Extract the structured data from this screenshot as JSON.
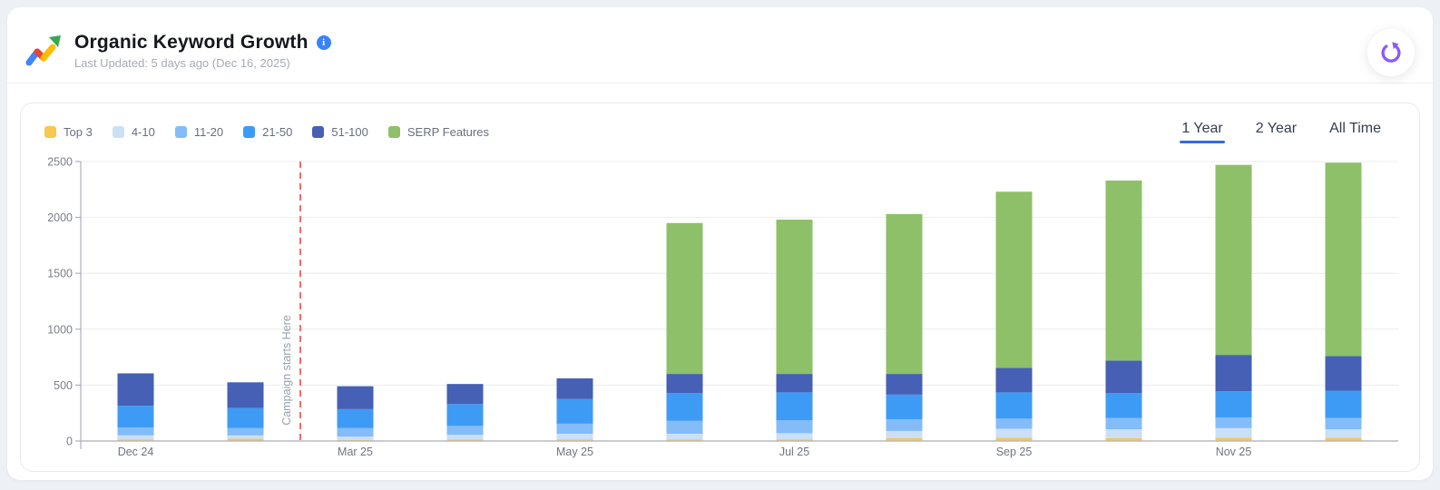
{
  "header": {
    "title": "Organic Keyword Growth",
    "subtitle": "Last Updated: 5 days ago (Dec 16, 2025)",
    "info_icon": "i"
  },
  "tabs": [
    {
      "label": "1 Year",
      "active": true
    },
    {
      "label": "2 Year",
      "active": false
    },
    {
      "label": "All Time",
      "active": false
    }
  ],
  "legend": [
    {
      "label": "Top 3",
      "color": "#f9c74f"
    },
    {
      "label": "4-10",
      "color": "#cbdff6"
    },
    {
      "label": "11-20",
      "color": "#83bcf8"
    },
    {
      "label": "21-50",
      "color": "#3e9bf5"
    },
    {
      "label": "51-100",
      "color": "#4560b4"
    },
    {
      "label": "SERP Features",
      "color": "#8ec069"
    }
  ],
  "colors": {
    "accent_blue": "#2f6be4",
    "refresh_purple": "#8b5cf6",
    "info_blue": "#3b82f6",
    "annotation_red": "#f56c6c",
    "grid": "#ececf0",
    "baseline": "#b8bcc2",
    "axis_line": "#9ea2a8",
    "axis_text": "#7a7f87"
  },
  "chart_data": {
    "type": "bar",
    "stacked": true,
    "categories": [
      "Dec 24",
      "",
      "Mar 25",
      "",
      "May 25",
      "",
      "Jul 25",
      "",
      "Sep 25",
      "",
      "Nov 25",
      ""
    ],
    "series": [
      {
        "name": "Top 3",
        "color": "#f9c74f",
        "values": [
          15,
          20,
          10,
          15,
          15,
          15,
          15,
          25,
          30,
          25,
          30,
          30
        ]
      },
      {
        "name": "4-10",
        "color": "#cbdff6",
        "values": [
          35,
          30,
          30,
          40,
          50,
          50,
          55,
          65,
          80,
          80,
          85,
          75
        ]
      },
      {
        "name": "11-20",
        "color": "#83bcf8",
        "values": [
          70,
          65,
          75,
          80,
          90,
          115,
          115,
          105,
          90,
          100,
          95,
          100
        ]
      },
      {
        "name": "21-50",
        "color": "#3e9bf5",
        "values": [
          195,
          180,
          170,
          195,
          220,
          250,
          250,
          220,
          235,
          225,
          235,
          245
        ]
      },
      {
        "name": "51-100",
        "color": "#4560b4",
        "values": [
          290,
          230,
          205,
          180,
          185,
          170,
          165,
          185,
          220,
          290,
          325,
          310
        ]
      },
      {
        "name": "SERP Features",
        "color": "#8ec069",
        "values": [
          0,
          0,
          0,
          0,
          0,
          1350,
          1380,
          1430,
          1575,
          1610,
          1700,
          1730
        ]
      }
    ],
    "ylim": [
      0,
      2500
    ],
    "yticks": [
      0,
      500,
      1000,
      1500,
      2000,
      2500
    ],
    "grid": true,
    "legend_position": "top-left",
    "annotation": {
      "label": "Campaign starts Here",
      "after_bar_index": 1,
      "style": "red-dashed-vertical"
    }
  }
}
